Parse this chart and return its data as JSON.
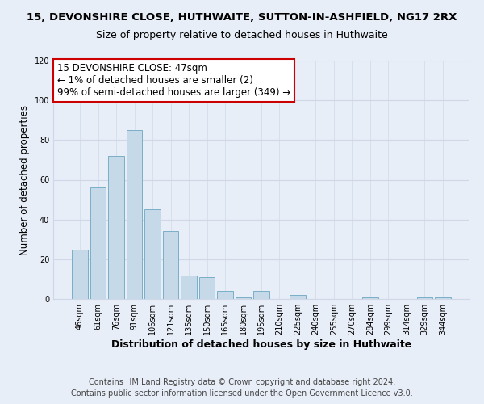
{
  "title": "15, DEVONSHIRE CLOSE, HUTHWAITE, SUTTON-IN-ASHFIELD, NG17 2RX",
  "subtitle": "Size of property relative to detached houses in Huthwaite",
  "xlabel": "Distribution of detached houses by size in Huthwaite",
  "ylabel": "Number of detached properties",
  "bar_labels": [
    "46sqm",
    "61sqm",
    "76sqm",
    "91sqm",
    "106sqm",
    "121sqm",
    "135sqm",
    "150sqm",
    "165sqm",
    "180sqm",
    "195sqm",
    "210sqm",
    "225sqm",
    "240sqm",
    "255sqm",
    "270sqm",
    "284sqm",
    "299sqm",
    "314sqm",
    "329sqm",
    "344sqm"
  ],
  "bar_values": [
    25,
    56,
    72,
    85,
    45,
    34,
    12,
    11,
    4,
    1,
    4,
    0,
    2,
    0,
    0,
    0,
    1,
    0,
    0,
    1,
    1
  ],
  "bar_color": "#c6d9e8",
  "bar_edge_color": "#7aafc8",
  "ylim": [
    0,
    120
  ],
  "yticks": [
    0,
    20,
    40,
    60,
    80,
    100,
    120
  ],
  "annotation_box_text": "15 DEVONSHIRE CLOSE: 47sqm\n← 1% of detached houses are smaller (2)\n99% of semi-detached houses are larger (349) →",
  "annotation_box_color": "#ffffff",
  "annotation_box_edge_color": "#cc0000",
  "footer_line1": "Contains HM Land Registry data © Crown copyright and database right 2024.",
  "footer_line2": "Contains public sector information licensed under the Open Government Licence v3.0.",
  "background_color": "#e8eef8",
  "grid_color": "#d0d8e8",
  "title_fontsize": 9.5,
  "subtitle_fontsize": 9,
  "xlabel_fontsize": 9,
  "ylabel_fontsize": 8.5,
  "tick_fontsize": 7,
  "annotation_fontsize": 8.5,
  "footer_fontsize": 7
}
